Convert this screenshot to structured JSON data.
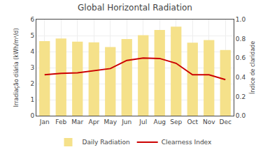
{
  "chart_data": {
    "type": "bar",
    "title": "Global Horizontal Radiation",
    "categories": [
      "Jan",
      "Feb",
      "Mar",
      "Apr",
      "May",
      "Jun",
      "Jul",
      "Aug",
      "Sep",
      "Oct",
      "Nov",
      "Dec"
    ],
    "series": [
      {
        "name": "Daily Radiation",
        "type": "bar",
        "color": "#F5E18A",
        "values": [
          4.65,
          4.82,
          4.62,
          4.58,
          4.28,
          4.78,
          5.02,
          5.35,
          5.55,
          4.55,
          4.72,
          4.1
        ]
      },
      {
        "name": "Clearness Index",
        "type": "line",
        "axis": "y2",
        "color": "#CC0000",
        "values": [
          0.425,
          0.44,
          0.445,
          0.47,
          0.49,
          0.575,
          0.6,
          0.595,
          0.545,
          0.425,
          0.425,
          0.375
        ]
      }
    ],
    "ylabel": "Irradiação diária (kWh/m²/d)",
    "y2label": "Índice de claridade",
    "ylim": [
      0,
      6
    ],
    "yticks": [
      0,
      1,
      2,
      3,
      4,
      5,
      6
    ],
    "y2lim": [
      0.0,
      1.0
    ],
    "y2ticks": [
      {
        "value": 0.0,
        "label": "0.0"
      },
      0.2,
      0.4,
      0.6,
      0.8,
      {
        "value": 1.0,
        "label": "1.0"
      }
    ],
    "grid": true,
    "legend": "bottom"
  }
}
